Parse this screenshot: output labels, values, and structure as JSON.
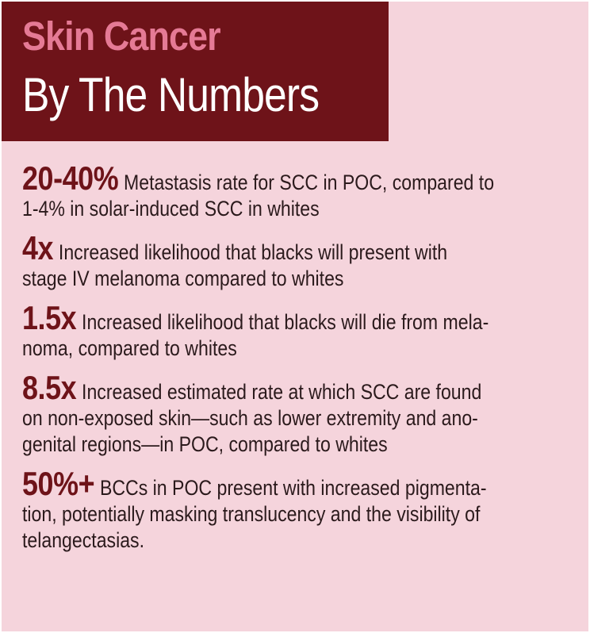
{
  "header": {
    "title": "Skin Cancer",
    "subtitle": "By The Numbers"
  },
  "colors": {
    "panel_background": "#f5d4dc",
    "header_background": "#6e1319",
    "title_pink": "#e57a95",
    "stat_value": "#6e1319",
    "body_text": "#2b1a1c"
  },
  "stats": [
    {
      "value": "20-40%",
      "line1": "Metastasis rate for SCC in POC, compared to",
      "line2": "1-4% in solar-induced SCC in whites"
    },
    {
      "value": "4x",
      "line1": "Increased likelihood that blacks will present with",
      "line2": "stage IV melanoma compared to whites"
    },
    {
      "value": "1.5x",
      "line1": "Increased likelihood that blacks will die from mela-",
      "line2": "noma, compared to whites"
    },
    {
      "value": "8.5x",
      "line1": "Increased estimated rate at which SCC are found",
      "line2": "on non-exposed skin—such as lower extremity and ano-",
      "line3": "genital regions—in POC, compared to whites"
    },
    {
      "value": "50%+",
      "line1": "BCCs in POC present with increased pigmenta-",
      "line2": "tion, potentially masking translucency and the visibility of",
      "line3": "telangectasias."
    }
  ]
}
